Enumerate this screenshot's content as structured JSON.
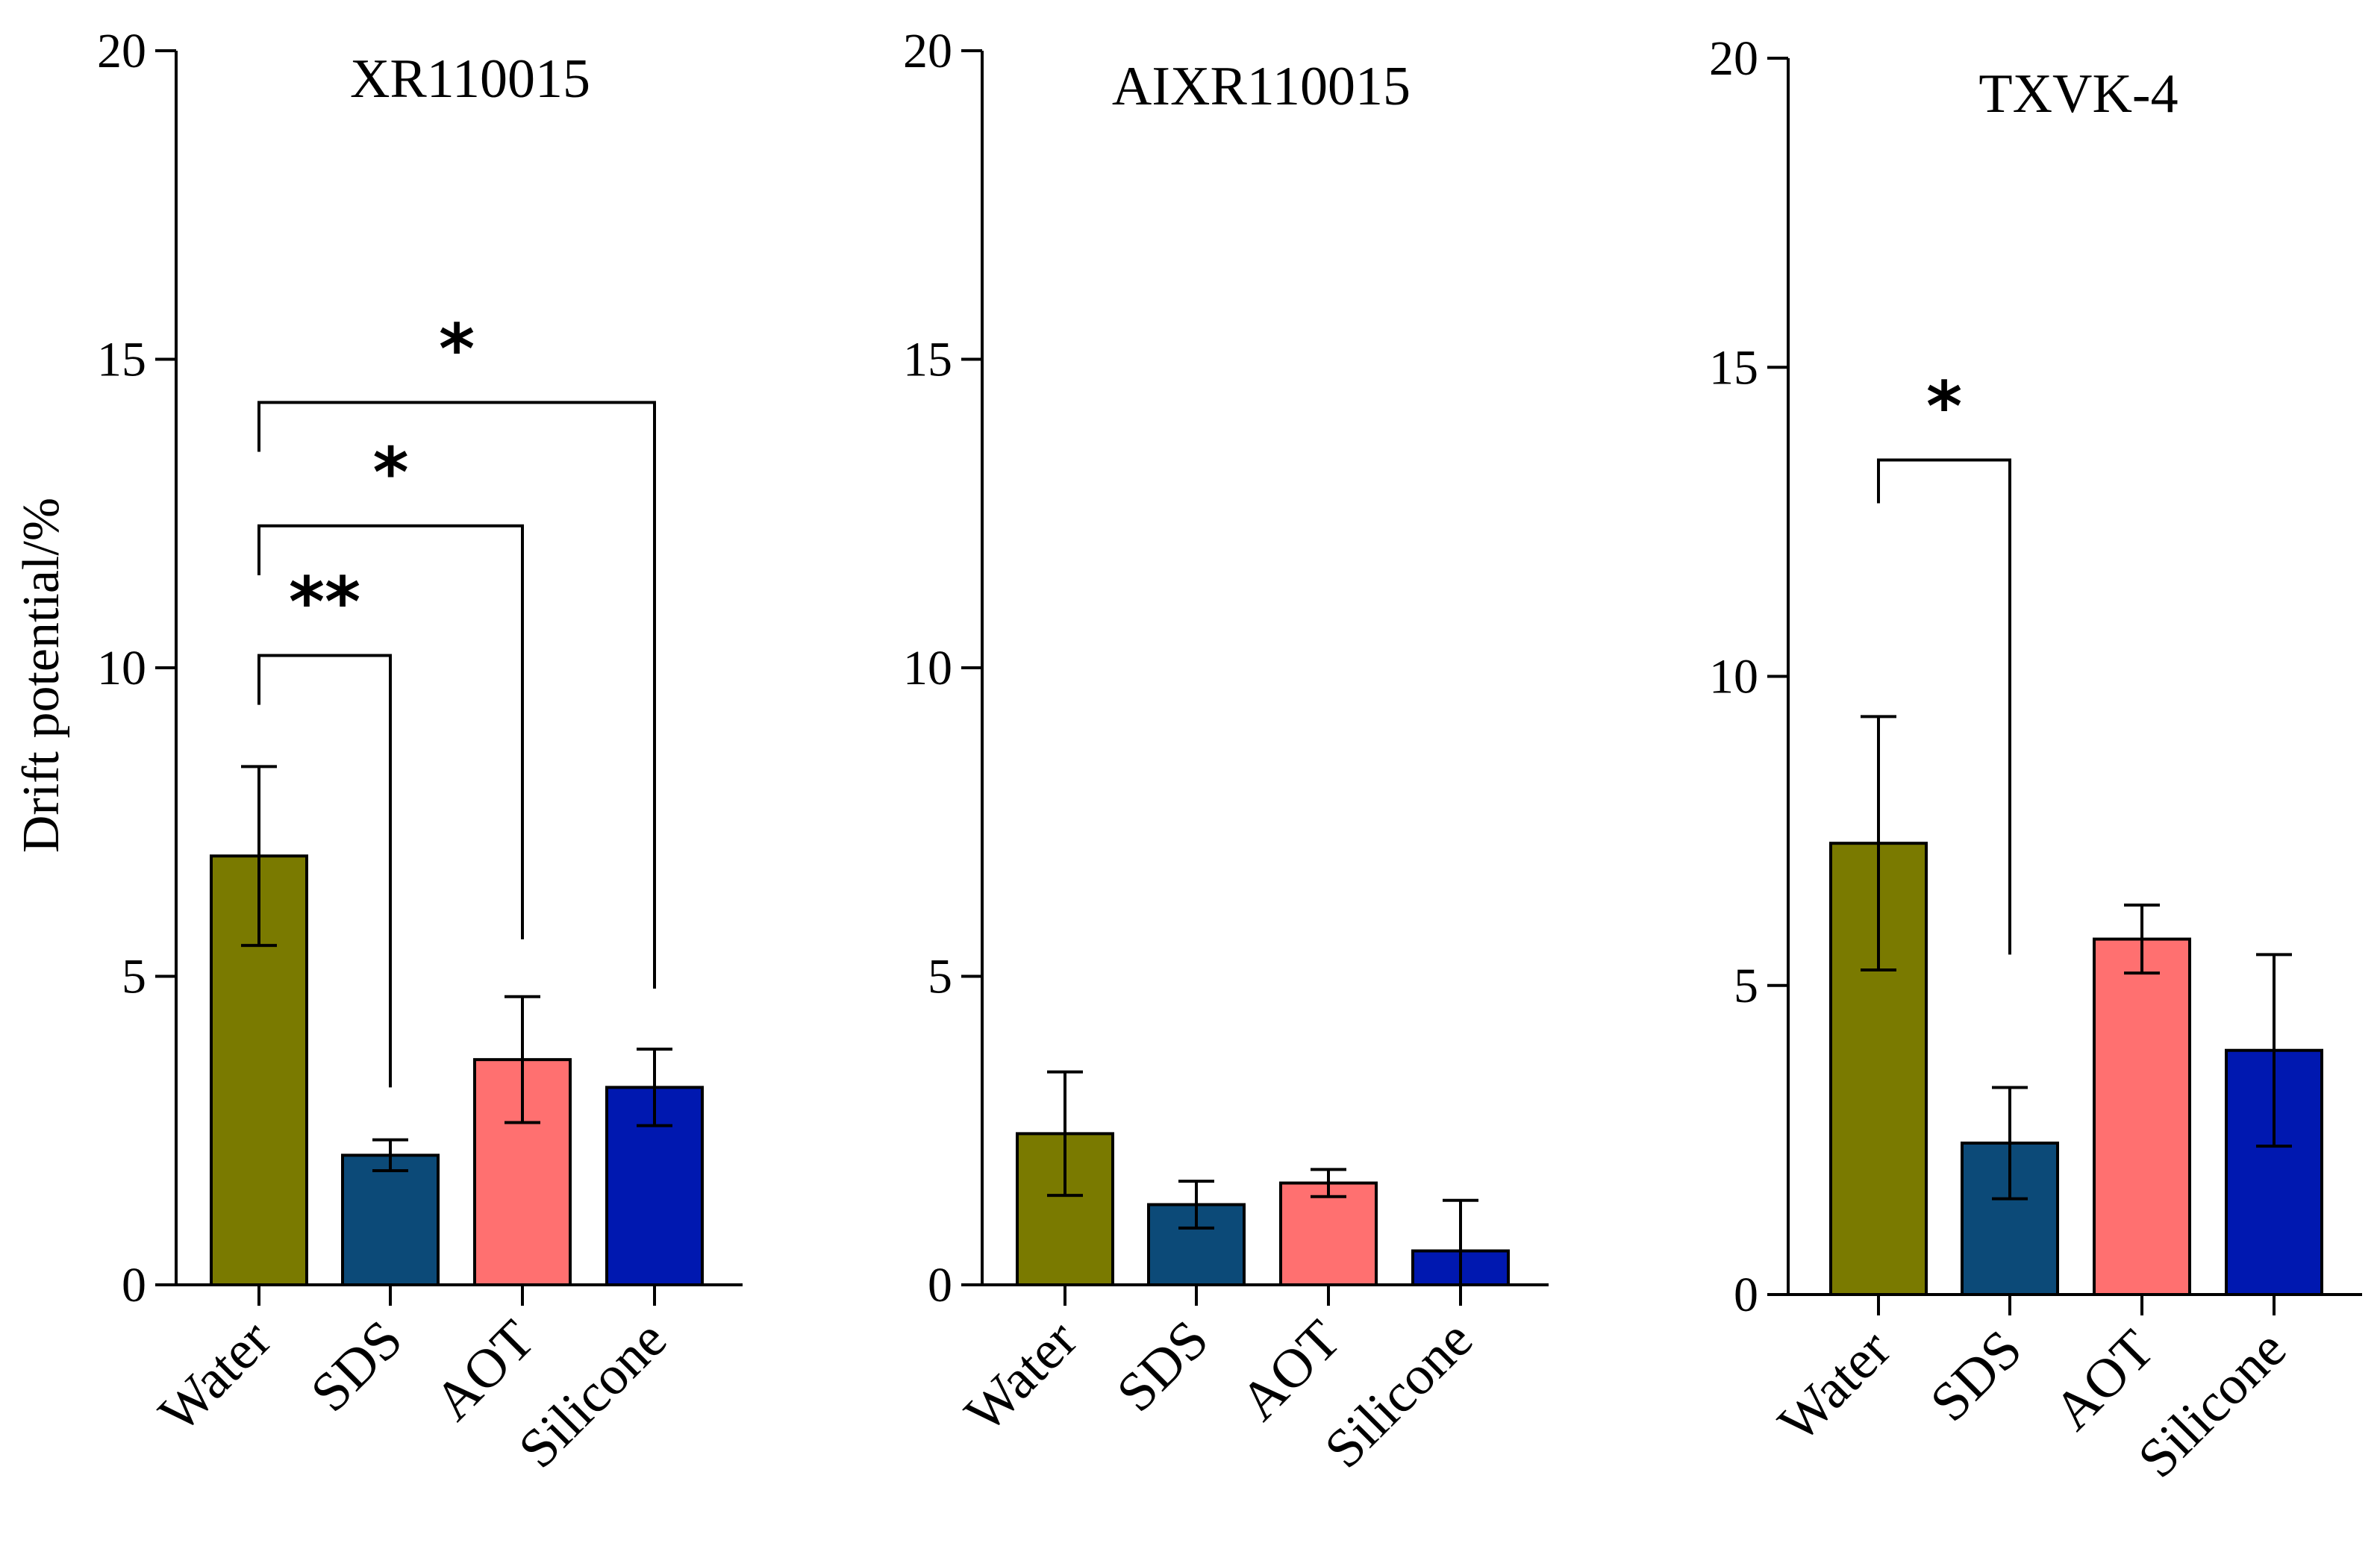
{
  "figure": {
    "ylabel": "Drift potential/%"
  },
  "chart_data": [
    {
      "type": "bar",
      "title": "XR110015",
      "categories": [
        "Water",
        "SDS",
        "AOT",
        "Silicone"
      ],
      "values": [
        6.95,
        2.1,
        3.65,
        3.2
      ],
      "errors": [
        1.45,
        0.25,
        1.02,
        0.62
      ],
      "colors": [
        "#7a7a00",
        "#0c4a78",
        "#ff7070",
        "#0018b0"
      ],
      "ylim": [
        0,
        20
      ],
      "yticks": [
        0,
        5,
        10,
        15,
        20
      ],
      "xlabel": "",
      "ylabel": "Drift potential/%",
      "significance": [
        {
          "from": "Water",
          "to": "SDS",
          "label": "**",
          "bracket_y": 10.2,
          "left_drop_y": 9.4,
          "right_drop_y": 3.2
        },
        {
          "from": "Water",
          "to": "AOT",
          "label": "*",
          "bracket_y": 12.3,
          "left_drop_y": 11.5,
          "right_drop_y": 5.6
        },
        {
          "from": "Water",
          "to": "Silicone",
          "label": "*",
          "bracket_y": 14.3,
          "left_drop_y": 13.5,
          "right_drop_y": 4.8
        }
      ]
    },
    {
      "type": "bar",
      "title": "AIXR110015",
      "categories": [
        "Water",
        "SDS",
        "AOT",
        "Silicone"
      ],
      "values": [
        2.45,
        1.3,
        1.65,
        0.55
      ],
      "errors": [
        1.0,
        0.38,
        0.22,
        0.82
      ],
      "colors": [
        "#7a7a00",
        "#0c4a78",
        "#ff7070",
        "#0018b0"
      ],
      "ylim": [
        0,
        20
      ],
      "yticks": [
        0,
        5,
        10,
        15,
        20
      ],
      "xlabel": "",
      "ylabel": "",
      "significance": []
    },
    {
      "type": "bar",
      "title": "TXVK-4",
      "categories": [
        "Water",
        "SDS",
        "AOT",
        "Silicone"
      ],
      "values": [
        7.3,
        2.45,
        5.75,
        3.95
      ],
      "errors": [
        2.05,
        0.9,
        0.55,
        1.55
      ],
      "colors": [
        "#7a7a00",
        "#0c4a78",
        "#ff7070",
        "#0018b0"
      ],
      "ylim": [
        0,
        20
      ],
      "yticks": [
        0,
        5,
        10,
        15,
        20
      ],
      "xlabel": "",
      "ylabel": "",
      "significance": [
        {
          "from": "Water",
          "to": "SDS",
          "label": "*",
          "bracket_y": 13.5,
          "left_drop_y": 12.8,
          "right_drop_y": 5.5
        }
      ]
    }
  ]
}
